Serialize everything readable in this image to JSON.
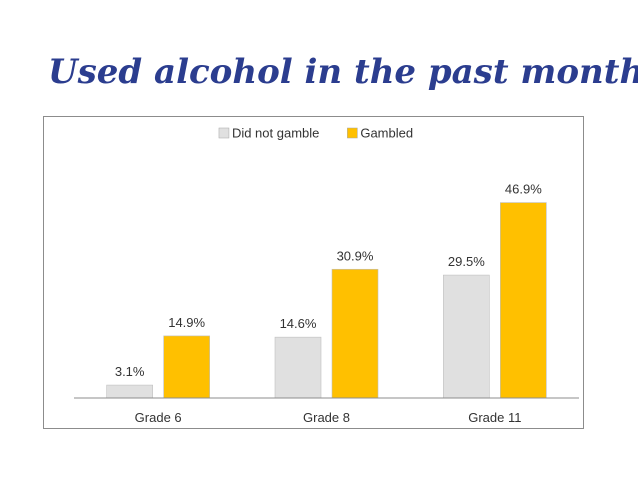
{
  "slide": {
    "title": "Used alcohol in the past month"
  },
  "colors": {
    "title": "#2b3d8f",
    "did_not_gamble": "#e0e0e0",
    "gambled": "#ffc000",
    "axis": "#8c8c8c",
    "text": "#333333"
  },
  "chart_data": {
    "type": "bar",
    "title": "",
    "xlabel": "",
    "ylabel": "",
    "ylim": [
      0,
      60
    ],
    "grid": false,
    "legend_position": "top-center",
    "categories": [
      "Grade 6",
      "Grade 8",
      "Grade 11"
    ],
    "series": [
      {
        "name": "Did not gamble",
        "values": [
          3.1,
          14.6,
          29.5
        ],
        "labels": [
          "3.1%",
          "14.6%",
          "29.5%"
        ],
        "color": "#e0e0e0"
      },
      {
        "name": "Gambled",
        "values": [
          14.9,
          30.9,
          46.9
        ],
        "labels": [
          "14.9%",
          "30.9%",
          "46.9%"
        ],
        "color": "#ffc000"
      }
    ]
  }
}
